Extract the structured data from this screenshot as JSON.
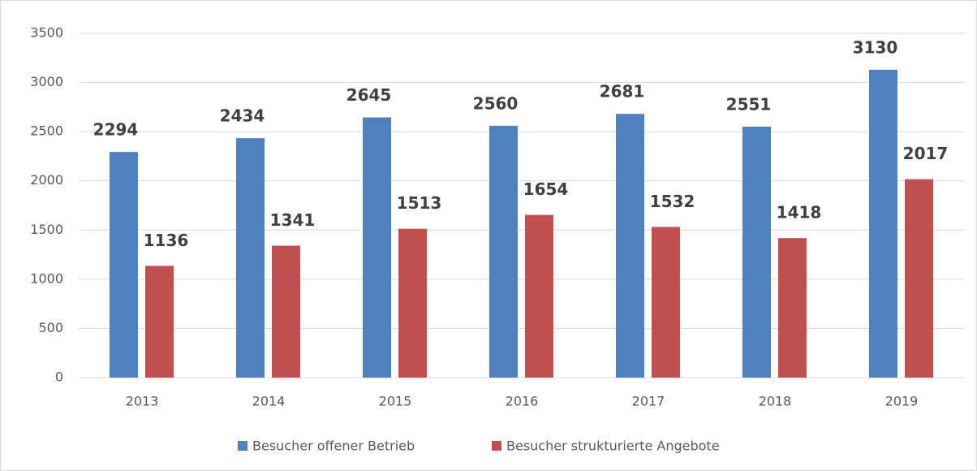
{
  "chart_data": {
    "type": "bar",
    "categories": [
      "2013",
      "2014",
      "2015",
      "2016",
      "2017",
      "2018",
      "2019"
    ],
    "series": [
      {
        "name": "Besucher offener Betrieb",
        "color": "#4f81bd",
        "values": [
          2294,
          2434,
          2645,
          2560,
          2681,
          2551,
          3130
        ]
      },
      {
        "name": "Besucher strukturierte Angebote",
        "color": "#c0504d",
        "values": [
          1136,
          1341,
          1513,
          1654,
          1532,
          1418,
          2017
        ]
      }
    ],
    "ylim": [
      0,
      3500
    ],
    "yticks": [
      0,
      500,
      1000,
      1500,
      2000,
      2500,
      3000,
      3500
    ],
    "grid": true,
    "legend": "bottom"
  }
}
